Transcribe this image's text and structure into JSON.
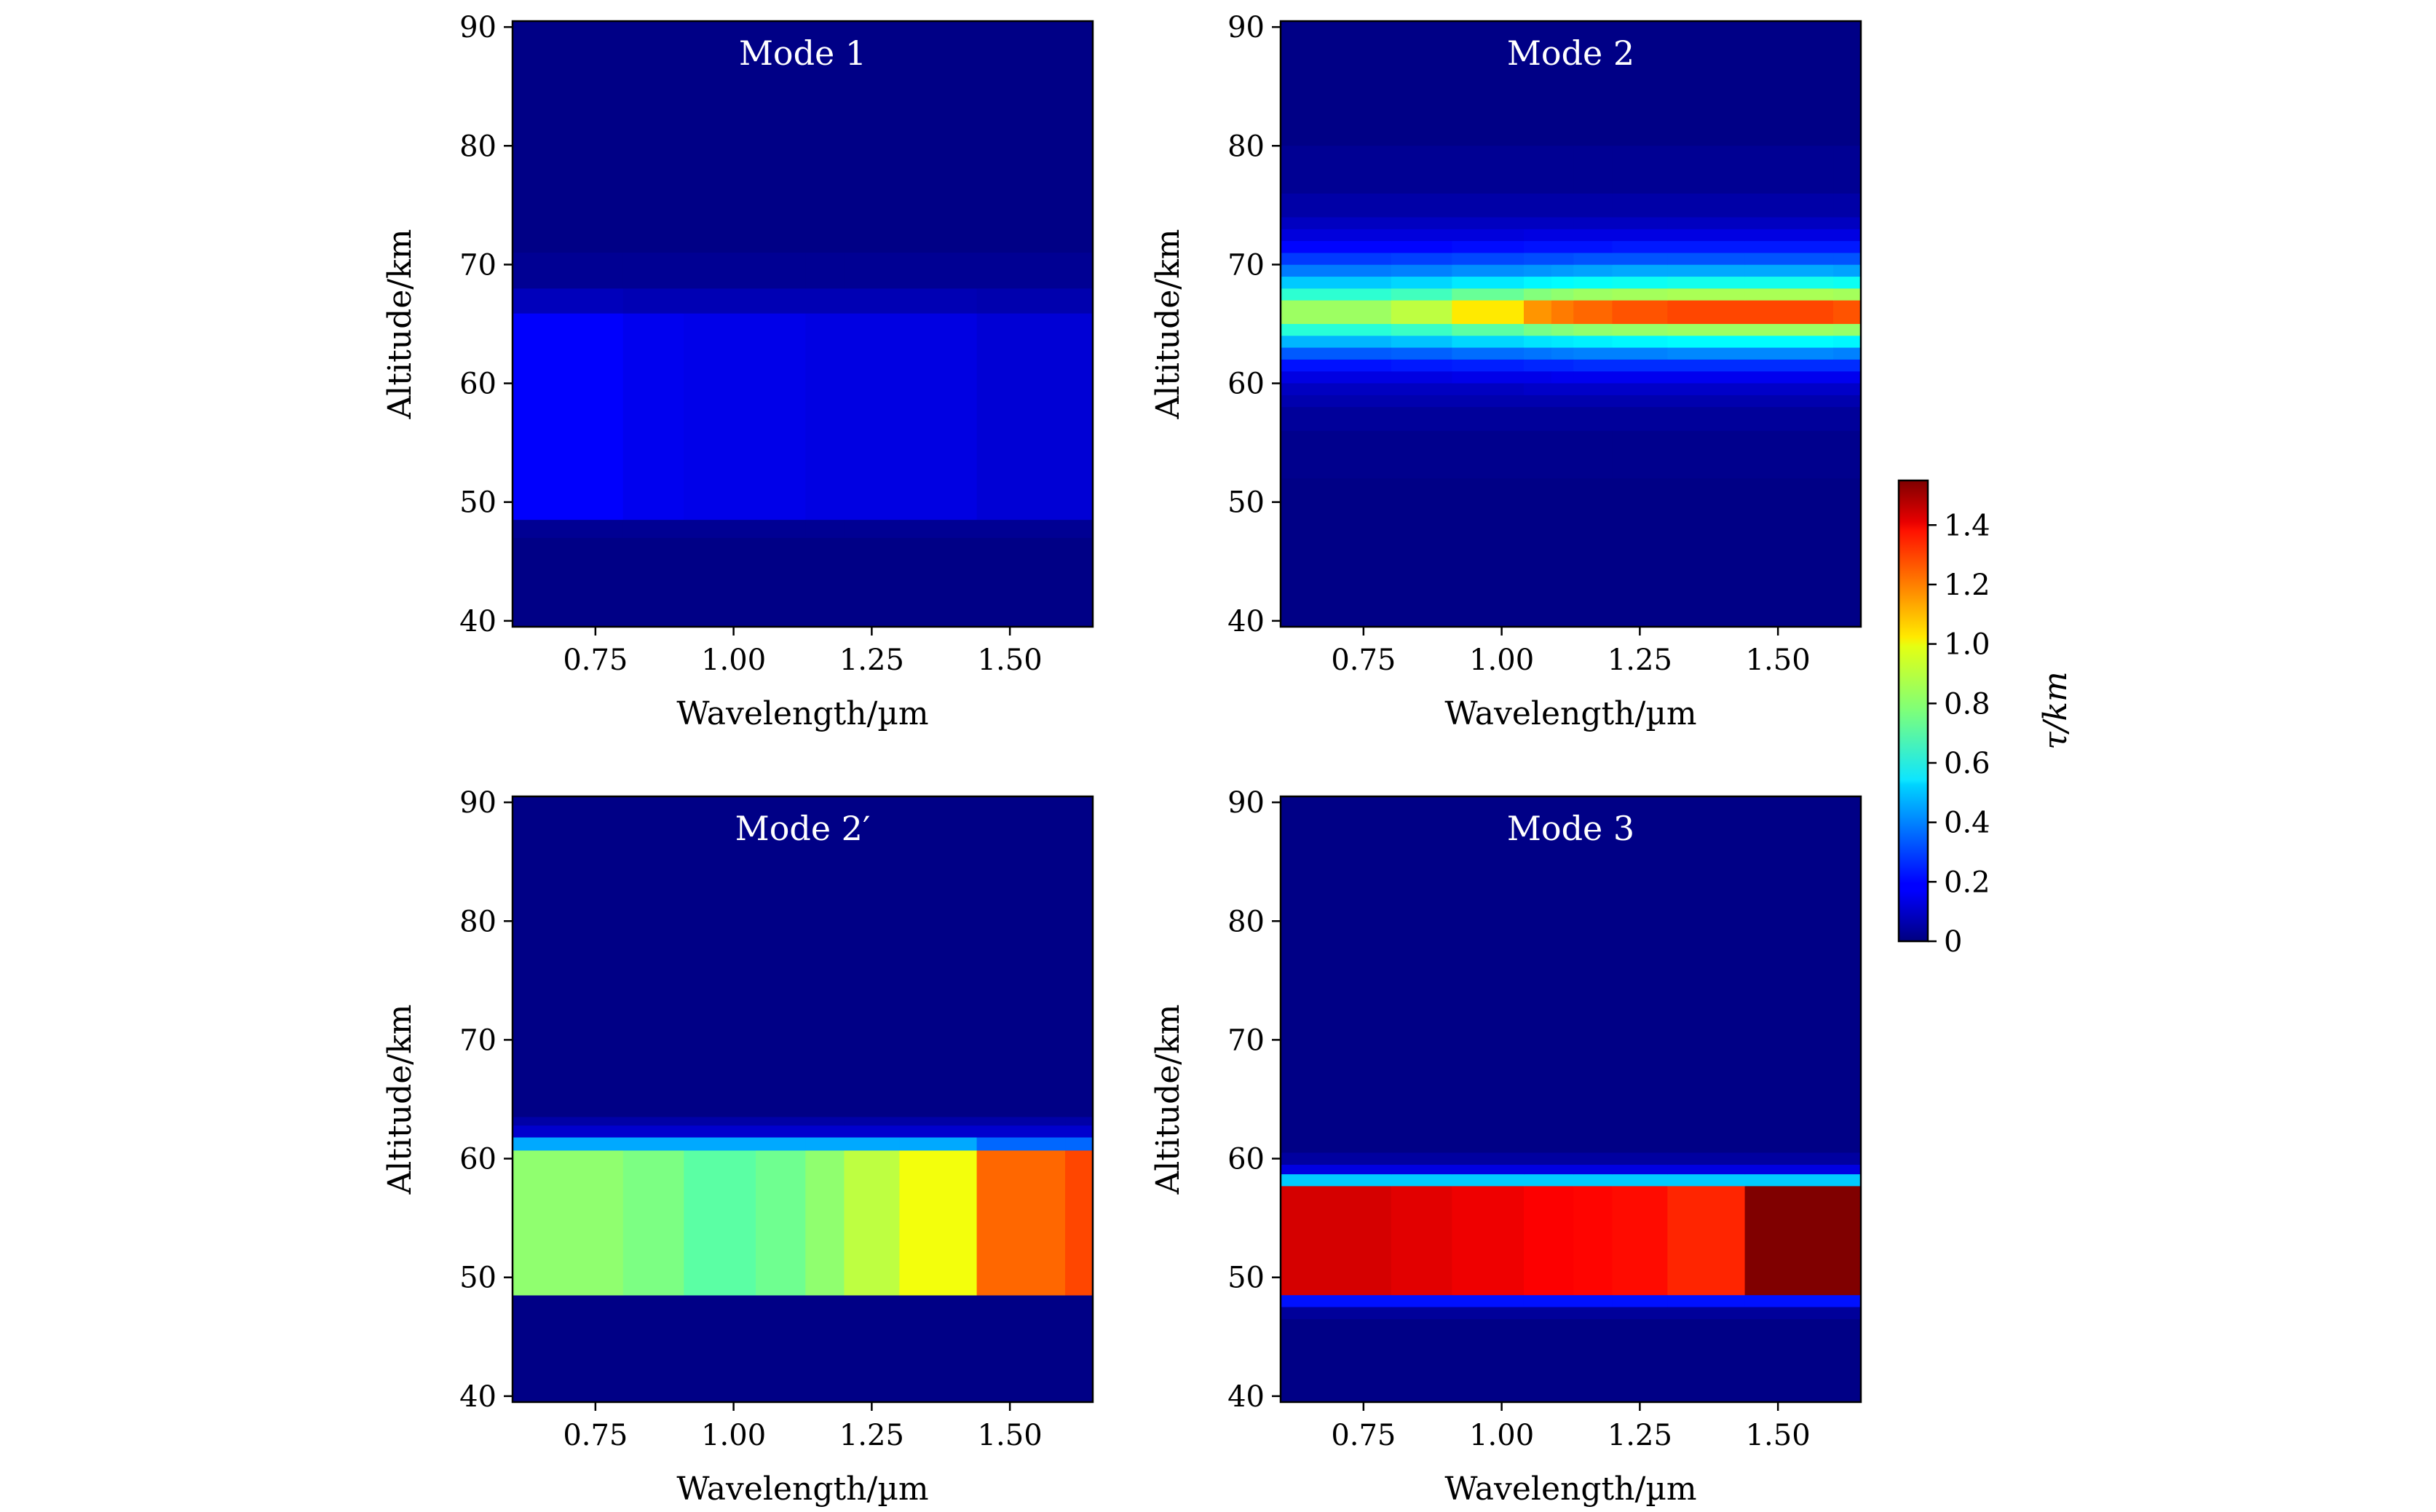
{
  "colorbar": {
    "label": "τ/km",
    "min": 0,
    "max": 1.55,
    "ticks": [
      0,
      0.2,
      0.4,
      0.6,
      0.8,
      1.0,
      1.2,
      1.4
    ],
    "tick_labels": [
      "0",
      "0.2",
      "0.4",
      "0.6",
      "0.8",
      "1.0",
      "1.2",
      "1.4"
    ],
    "colormap": "jet"
  },
  "chart_data": [
    {
      "type": "heatmap",
      "title": "Mode 1",
      "xlabel": "Wavelength/µm",
      "ylabel": "Altitude/km",
      "xlim": [
        0.6,
        1.65
      ],
      "ylim": [
        39.5,
        90.5
      ],
      "xticks": [
        0.75,
        1.0,
        1.25,
        1.5
      ],
      "xtick_labels": [
        "0.75",
        "1.00",
        "1.25",
        "1.50"
      ],
      "yticks": [
        40,
        50,
        60,
        70,
        80,
        90
      ],
      "ytick_labels": [
        "40",
        "50",
        "60",
        "70",
        "80",
        "90"
      ],
      "x_bins": [
        0.6,
        0.8,
        0.91,
        1.04,
        1.13,
        1.2,
        1.3,
        1.44,
        1.65
      ],
      "background": 0.01,
      "bands": [
        {
          "alt_range": [
            48.5,
            65.9
          ],
          "values": [
            0.19,
            0.17,
            0.16,
            0.16,
            0.15,
            0.15,
            0.15,
            0.13
          ]
        },
        {
          "alt_range": [
            65.9,
            68.0
          ],
          "values": [
            0.09,
            0.08,
            0.08,
            0.08,
            0.08,
            0.08,
            0.08,
            0.07
          ]
        },
        {
          "alt_range": [
            68.0,
            71.0
          ],
          "values": [
            0.03,
            0.03,
            0.03,
            0.03,
            0.03,
            0.03,
            0.03,
            0.03
          ]
        },
        {
          "alt_range": [
            47.0,
            48.5
          ],
          "values": [
            0.03,
            0.03,
            0.03,
            0.03,
            0.03,
            0.03,
            0.03,
            0.03
          ]
        }
      ]
    },
    {
      "type": "heatmap",
      "title": "Mode 2",
      "xlabel": "Wavelength/µm",
      "ylabel": "Altitude/km",
      "xlim": [
        0.6,
        1.65
      ],
      "ylim": [
        39.5,
        90.5
      ],
      "xticks": [
        0.75,
        1.0,
        1.25,
        1.5
      ],
      "xtick_labels": [
        "0.75",
        "1.00",
        "1.25",
        "1.50"
      ],
      "yticks": [
        40,
        50,
        60,
        70,
        80,
        90
      ],
      "ytick_labels": [
        "40",
        "50",
        "60",
        "70",
        "80",
        "90"
      ],
      "x_bins": [
        0.6,
        0.8,
        0.91,
        1.04,
        1.09,
        1.13,
        1.2,
        1.3,
        1.44,
        1.6,
        1.65
      ],
      "background": 0.01,
      "bands": [
        {
          "alt_range": [
            65.0,
            67.0
          ],
          "values": [
            0.82,
            0.87,
            1.0,
            1.13,
            1.17,
            1.2,
            1.23,
            1.25,
            1.25,
            1.23
          ]
        },
        {
          "alt_range": [
            67.0,
            68.0
          ],
          "values": [
            0.65,
            0.68,
            0.74,
            0.78,
            0.8,
            0.82,
            0.83,
            0.84,
            0.84,
            0.83
          ]
        },
        {
          "alt_range": [
            64.0,
            65.0
          ],
          "values": [
            0.64,
            0.67,
            0.72,
            0.76,
            0.78,
            0.8,
            0.81,
            0.82,
            0.82,
            0.81
          ]
        },
        {
          "alt_range": [
            68.0,
            69.0
          ],
          "values": [
            0.5,
            0.52,
            0.55,
            0.57,
            0.58,
            0.59,
            0.6,
            0.61,
            0.61,
            0.6
          ]
        },
        {
          "alt_range": [
            63.0,
            64.0
          ],
          "values": [
            0.47,
            0.49,
            0.52,
            0.54,
            0.55,
            0.56,
            0.57,
            0.58,
            0.58,
            0.57
          ]
        },
        {
          "alt_range": [
            69.0,
            70.0
          ],
          "values": [
            0.38,
            0.39,
            0.41,
            0.42,
            0.43,
            0.44,
            0.45,
            0.45,
            0.45,
            0.44
          ]
        },
        {
          "alt_range": [
            62.0,
            63.0
          ],
          "values": [
            0.33,
            0.34,
            0.36,
            0.37,
            0.38,
            0.39,
            0.39,
            0.4,
            0.4,
            0.39
          ]
        },
        {
          "alt_range": [
            70.0,
            71.0
          ],
          "values": [
            0.28,
            0.29,
            0.3,
            0.31,
            0.31,
            0.32,
            0.32,
            0.32,
            0.32,
            0.32
          ]
        },
        {
          "alt_range": [
            61.0,
            62.0
          ],
          "values": [
            0.22,
            0.23,
            0.24,
            0.25,
            0.25,
            0.26,
            0.26,
            0.26,
            0.26,
            0.26
          ]
        },
        {
          "alt_range": [
            71.0,
            72.0
          ],
          "values": [
            0.2,
            0.2,
            0.21,
            0.22,
            0.22,
            0.22,
            0.23,
            0.23,
            0.23,
            0.23
          ]
        },
        {
          "alt_range": [
            60.0,
            61.0
          ],
          "values": [
            0.15,
            0.15,
            0.16,
            0.16,
            0.17,
            0.17,
            0.17,
            0.17,
            0.17,
            0.17
          ]
        },
        {
          "alt_range": [
            72.0,
            73.0
          ],
          "values": [
            0.14,
            0.14,
            0.14,
            0.15,
            0.15,
            0.15,
            0.15,
            0.15,
            0.15,
            0.15
          ]
        },
        {
          "alt_range": [
            59.0,
            60.0
          ],
          "values": [
            0.1,
            0.1,
            0.1,
            0.11,
            0.11,
            0.11,
            0.11,
            0.11,
            0.11,
            0.11
          ]
        },
        {
          "alt_range": [
            73.0,
            74.0
          ],
          "values": [
            0.1,
            0.1,
            0.1,
            0.1,
            0.1,
            0.1,
            0.1,
            0.1,
            0.1,
            0.1
          ]
        },
        {
          "alt_range": [
            58.0,
            59.0
          ],
          "values": [
            0.07,
            0.07,
            0.07,
            0.07,
            0.07,
            0.07,
            0.07,
            0.07,
            0.07,
            0.07
          ]
        },
        {
          "alt_range": [
            74.0,
            76.0
          ],
          "values": [
            0.06,
            0.06,
            0.06,
            0.06,
            0.06,
            0.06,
            0.06,
            0.06,
            0.06,
            0.06
          ]
        },
        {
          "alt_range": [
            56.0,
            58.0
          ],
          "values": [
            0.04,
            0.04,
            0.04,
            0.04,
            0.04,
            0.04,
            0.04,
            0.04,
            0.04,
            0.04
          ]
        },
        {
          "alt_range": [
            76.0,
            80.0
          ],
          "values": [
            0.03,
            0.03,
            0.03,
            0.03,
            0.03,
            0.03,
            0.03,
            0.03,
            0.03,
            0.03
          ]
        },
        {
          "alt_range": [
            52.0,
            56.0
          ],
          "values": [
            0.02,
            0.02,
            0.02,
            0.02,
            0.02,
            0.02,
            0.02,
            0.02,
            0.02,
            0.02
          ]
        }
      ]
    },
    {
      "type": "heatmap",
      "title": "Mode 2′",
      "xlabel": "Wavelength/µm",
      "ylabel": "Altitude/km",
      "xlim": [
        0.6,
        1.65
      ],
      "ylim": [
        39.5,
        90.5
      ],
      "xticks": [
        0.75,
        1.0,
        1.25,
        1.5
      ],
      "xtick_labels": [
        "0.75",
        "1.00",
        "1.25",
        "1.50"
      ],
      "yticks": [
        40,
        50,
        60,
        70,
        80,
        90
      ],
      "ytick_labels": [
        "40",
        "50",
        "60",
        "70",
        "80",
        "90"
      ],
      "x_bins": [
        0.6,
        0.8,
        0.91,
        1.04,
        1.13,
        1.2,
        1.3,
        1.44,
        1.6,
        1.65
      ],
      "background": 0.01,
      "bands": [
        {
          "alt_range": [
            48.5,
            60.7
          ],
          "values": [
            0.8,
            0.77,
            0.72,
            0.75,
            0.8,
            0.87,
            0.95,
            1.2,
            1.25
          ]
        },
        {
          "alt_range": [
            60.7,
            61.8
          ],
          "values": [
            0.45,
            0.45,
            0.45,
            0.45,
            0.45,
            0.45,
            0.45,
            0.35,
            0.35
          ]
        },
        {
          "alt_range": [
            61.8,
            62.8
          ],
          "values": [
            0.12,
            0.12,
            0.12,
            0.12,
            0.12,
            0.12,
            0.12,
            0.12,
            0.12
          ]
        },
        {
          "alt_range": [
            62.8,
            63.5
          ],
          "values": [
            0.06,
            0.06,
            0.06,
            0.06,
            0.06,
            0.06,
            0.06,
            0.06,
            0.06
          ]
        }
      ]
    },
    {
      "type": "heatmap",
      "title": "Mode 3",
      "xlabel": "Wavelength/µm",
      "ylabel": "Altitude/km",
      "xlim": [
        0.6,
        1.65
      ],
      "ylim": [
        39.5,
        90.5
      ],
      "xticks": [
        0.75,
        1.0,
        1.25,
        1.5
      ],
      "xtick_labels": [
        "0.75",
        "1.00",
        "1.25",
        "1.50"
      ],
      "yticks": [
        40,
        50,
        60,
        70,
        80,
        90
      ],
      "ytick_labels": [
        "40",
        "50",
        "60",
        "70",
        "80",
        "90"
      ],
      "x_bins": [
        0.6,
        0.8,
        0.91,
        1.04,
        1.13,
        1.2,
        1.3,
        1.44,
        1.65
      ],
      "background": 0.01,
      "bands": [
        {
          "alt_range": [
            48.5,
            57.7
          ],
          "values": [
            1.42,
            1.4,
            1.38,
            1.36,
            1.35,
            1.34,
            1.3,
            1.55
          ]
        },
        {
          "alt_range": [
            57.7,
            58.7
          ],
          "values": [
            0.5,
            0.5,
            0.5,
            0.5,
            0.5,
            0.5,
            0.5,
            0.5
          ]
        },
        {
          "alt_range": [
            58.7,
            59.5
          ],
          "values": [
            0.15,
            0.15,
            0.15,
            0.15,
            0.15,
            0.15,
            0.15,
            0.15
          ]
        },
        {
          "alt_range": [
            59.5,
            60.5
          ],
          "values": [
            0.05,
            0.05,
            0.05,
            0.05,
            0.05,
            0.05,
            0.05,
            0.05
          ]
        },
        {
          "alt_range": [
            47.5,
            48.5
          ],
          "values": [
            0.22,
            0.22,
            0.22,
            0.22,
            0.22,
            0.22,
            0.22,
            0.22
          ]
        },
        {
          "alt_range": [
            46.5,
            47.5
          ],
          "values": [
            0.04,
            0.04,
            0.04,
            0.04,
            0.04,
            0.04,
            0.04,
            0.04
          ]
        }
      ]
    }
  ]
}
